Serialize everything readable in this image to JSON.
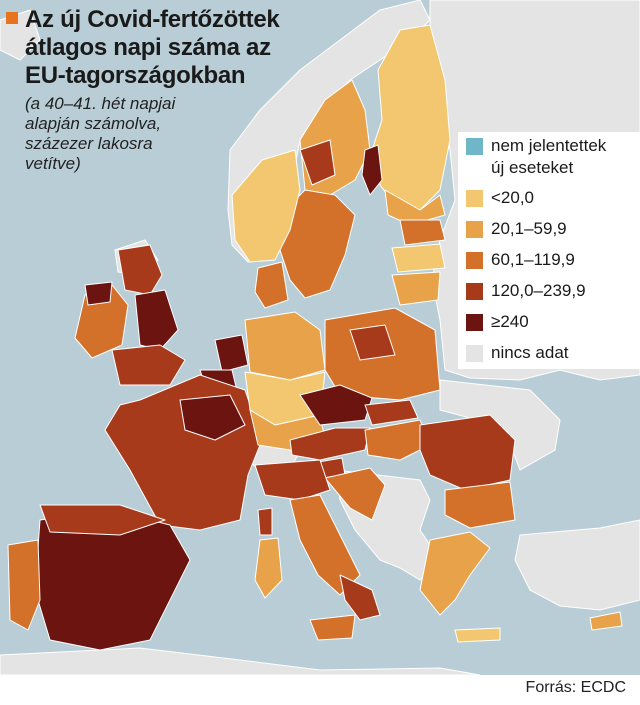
{
  "title_lines": [
    "Az új Covid-fertőzöttek",
    "átlagos napi száma az",
    "EU-tagországokban"
  ],
  "subtitle_lines": [
    "(a 40–41. hét napjai",
    "alapján számolva,",
    "százezer lakosra",
    "vetítve)"
  ],
  "legend": [
    {
      "label_lines": [
        "nem jelentettek",
        "új eseteket"
      ],
      "color": "#6fb6c9"
    },
    {
      "label_lines": [
        "<20,0"
      ],
      "color": "#f3c770"
    },
    {
      "label_lines": [
        "20,1–59,9"
      ],
      "color": "#e8a24a"
    },
    {
      "label_lines": [
        "60,1–119,9"
      ],
      "color": "#d3702a"
    },
    {
      "label_lines": [
        "120,0–239,9"
      ],
      "color": "#a83a1c"
    },
    {
      "label_lines": [
        "≥240"
      ],
      "color": "#6b1410"
    },
    {
      "label_lines": [
        "nincs adat"
      ],
      "color": "#e4e4e4"
    }
  ],
  "source": "Forrás: ECDC",
  "colors": {
    "sea": "#b8cdd6",
    "non_eu_land": "#e4e4e4",
    "border": "#ffffff",
    "title_marker": "#e8731f"
  }
}
